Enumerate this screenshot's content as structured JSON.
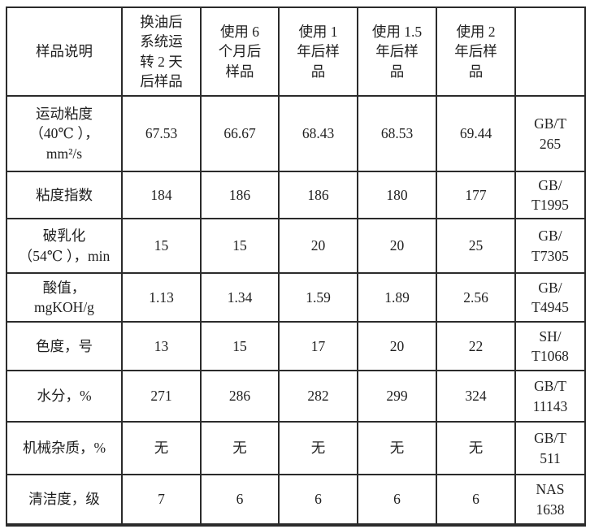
{
  "table": {
    "header": [
      "样品说明",
      "换油后\n系统运\n转 2 天\n后样品",
      "使用 6\n个月后\n样品",
      "使用 1\n年后样\n品",
      "使用 1.5\n年后样\n品",
      "使用 2\n年后样\n品",
      ""
    ],
    "rows": [
      {
        "label": "运动粘度\n（40℃ ），\nmm²/s",
        "values": [
          "67.53",
          "66.67",
          "68.43",
          "68.53",
          "69.44"
        ],
        "standard": "GB/T\n265"
      },
      {
        "label": "粘度指数",
        "values": [
          "184",
          "186",
          "186",
          "180",
          "177"
        ],
        "standard": "GB/\nT1995"
      },
      {
        "label": "破乳化\n（54℃ ），min",
        "values": [
          "15",
          "15",
          "20",
          "20",
          "25"
        ],
        "standard": "GB/\nT7305"
      },
      {
        "label": "酸值，\nmgKOH/g",
        "values": [
          "1.13",
          "1.34",
          "1.59",
          "1.89",
          "2.56"
        ],
        "standard": "GB/\nT4945"
      },
      {
        "label": "色度，号",
        "values": [
          "13",
          "15",
          "17",
          "20",
          "22"
        ],
        "standard": "SH/\nT1068"
      },
      {
        "label": "水分，%",
        "values": [
          "271",
          "286",
          "282",
          "299",
          "324"
        ],
        "standard": "GB/T\n11143"
      },
      {
        "label": "机械杂质，%",
        "values": [
          "无",
          "无",
          "无",
          "无",
          "无"
        ],
        "standard": "GB/T\n511"
      },
      {
        "label": "清洁度，级",
        "values": [
          "7",
          "6",
          "6",
          "6",
          "6"
        ],
        "standard": "NAS\n1638"
      }
    ]
  }
}
